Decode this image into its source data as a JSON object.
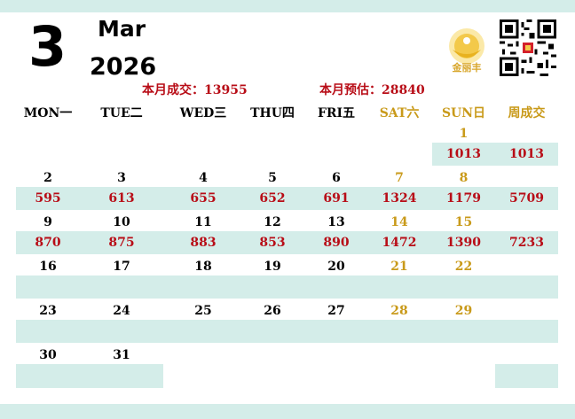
{
  "header": {
    "month_number": "3",
    "month_name": "Mar",
    "year": "2026",
    "monthly_deal": "本月成交：13955",
    "monthly_forecast": "本月预估：28840",
    "logo_text": "金丽丰"
  },
  "weekdays": [
    "MON一",
    "TUE二",
    "WED三",
    "THU四",
    "FRI五",
    "SAT六",
    "SUN日",
    "周成交"
  ],
  "weeks": [
    {
      "dates": [
        "",
        "",
        "",
        "",
        "",
        "",
        "1"
      ],
      "values": [
        "",
        "",
        "",
        "",
        "",
        "",
        "1013"
      ],
      "weekly_total": "1013"
    },
    {
      "dates": [
        "2",
        "3",
        "4",
        "5",
        "6",
        "7",
        "8"
      ],
      "values": [
        "595",
        "613",
        "655",
        "652",
        "691",
        "1324",
        "1179"
      ],
      "weekly_total": "5709"
    },
    {
      "dates": [
        "9",
        "10",
        "11",
        "12",
        "13",
        "14",
        "15"
      ],
      "values": [
        "870",
        "875",
        "883",
        "853",
        "890",
        "1472",
        "1390"
      ],
      "weekly_total": "7233"
    },
    {
      "dates": [
        "16",
        "17",
        "18",
        "19",
        "20",
        "21",
        "22"
      ],
      "values": [
        "",
        "",
        "",
        "",
        "",
        "",
        ""
      ],
      "weekly_total": ""
    },
    {
      "dates": [
        "23",
        "24",
        "25",
        "26",
        "27",
        "28",
        "29"
      ],
      "values": [
        "",
        "",
        "",
        "",
        "",
        "",
        ""
      ],
      "weekly_total": ""
    },
    {
      "dates": [
        "30",
        "31",
        "",
        "",
        "",
        "",
        ""
      ],
      "values": [
        "",
        "",
        "",
        "",
        "",
        "",
        ""
      ],
      "weekly_total": ""
    }
  ],
  "colors": {
    "band": "#d4ede9",
    "value_red": "#b80d17",
    "weekend_gold": "#c99a1a"
  }
}
